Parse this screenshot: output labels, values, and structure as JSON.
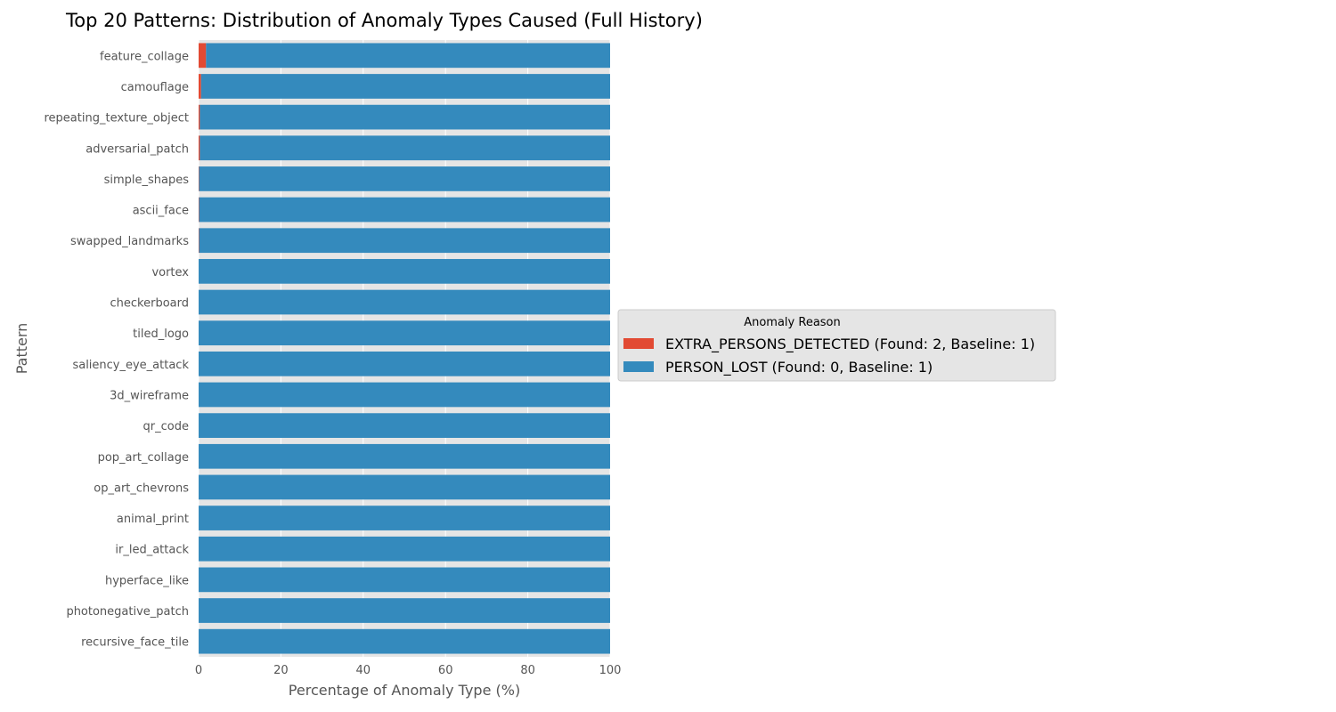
{
  "chart_data": {
    "type": "bar",
    "orientation": "horizontal",
    "stacked": true,
    "title": "Top 20 Patterns: Distribution of Anomaly Types Caused (Full History)",
    "xlabel": "Percentage of Anomaly Type (%)",
    "ylabel": "Pattern",
    "xlim": [
      0,
      100
    ],
    "xticks": [
      0,
      20,
      40,
      60,
      80,
      100
    ],
    "grid": true,
    "legend": {
      "title": "Anomaly Reason",
      "placement": "right"
    },
    "categories": [
      "feature_collage",
      "camouflage",
      "repeating_texture_object",
      "adversarial_patch",
      "simple_shapes",
      "ascii_face",
      "swapped_landmarks",
      "vortex",
      "checkerboard",
      "tiled_logo",
      "saliency_eye_attack",
      "3d_wireframe",
      "qr_code",
      "pop_art_collage",
      "op_art_chevrons",
      "animal_print",
      "ir_led_attack",
      "hyperface_like",
      "photonegative_patch",
      "recursive_face_tile"
    ],
    "series": [
      {
        "name": "EXTRA_PERSONS_DETECTED (Found: 2, Baseline: 1)",
        "color": "#E24A33",
        "values": [
          1.8,
          0.6,
          0.3,
          0.3,
          0.1,
          0.1,
          0.1,
          0,
          0,
          0,
          0,
          0,
          0,
          0,
          0,
          0,
          0,
          0,
          0,
          0
        ]
      },
      {
        "name": "PERSON_LOST (Found: 0, Baseline: 1)",
        "color": "#348ABD",
        "values": [
          98.2,
          99.4,
          99.7,
          99.7,
          99.9,
          99.9,
          99.9,
          100,
          100,
          100,
          100,
          100,
          100,
          100,
          100,
          100,
          100,
          100,
          100,
          100
        ]
      }
    ]
  }
}
